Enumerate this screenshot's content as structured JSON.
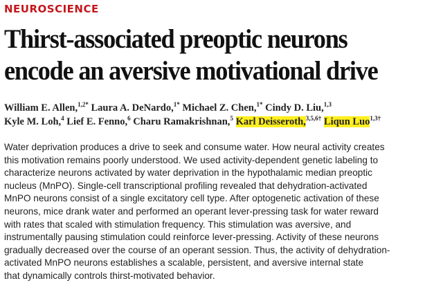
{
  "section": "NEUROSCIENCE",
  "title_lines": [
    "Thirst-associated preoptic neurons",
    "encode an aversive motivational drive"
  ],
  "authors": [
    [
      {
        "name": "William E. Allen,",
        "sup": "1,2*",
        "highlight": false
      },
      {
        "name": "Laura A. DeNardo,",
        "sup": "1*",
        "highlight": false
      },
      {
        "name": "Michael Z. Chen,",
        "sup": "1*",
        "highlight": false
      },
      {
        "name": "Cindy D. Liu,",
        "sup": "1,3",
        "highlight": false
      }
    ],
    [
      {
        "name": "Kyle M. Loh,",
        "sup": "4",
        "highlight": false
      },
      {
        "name": "Lief E. Fenno,",
        "sup": "6",
        "highlight": false
      },
      {
        "name": "Charu Ramakrishnan,",
        "sup": "5",
        "highlight": false
      },
      {
        "name": "Karl Deisseroth,",
        "sup": "3,5,6†",
        "highlight": true
      },
      {
        "name": "Liqun Luo",
        "sup": "1,3†",
        "highlight": true
      }
    ]
  ],
  "highlight_color": "#ffef1f",
  "abstract_lines": [
    "Water deprivation produces a drive to seek and consume water. How neural activity creates",
    "this motivation remains poorly understood. We used activity-dependent genetic labeling to",
    "characterize neurons activated by water deprivation in the hypothalamic median preoptic",
    "nucleus (MnPO). Single-cell transcriptional profiling revealed that dehydration-activated",
    "MnPO neurons consist of a single excitatory cell type. After optogenetic activation of these",
    "neurons, mice drank water and performed an operant lever-pressing task for water reward",
    "with rates that scaled with stimulation frequency. This stimulation was aversive, and",
    "instrumentally pausing stimulation could reinforce lever-pressing. Activity of these neurons",
    "gradually decreased over the course of an operant session. Thus, the activity of dehydration-",
    "activated MnPO neurons establishes a scalable, persistent, and aversive internal state",
    "that dynamically controls thirst-motivated behavior."
  ]
}
